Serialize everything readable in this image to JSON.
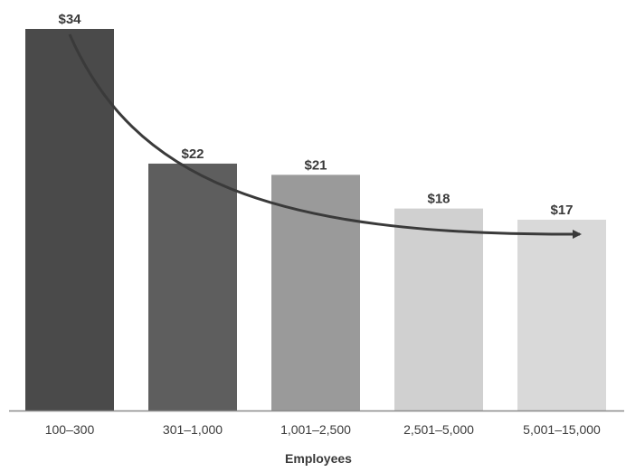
{
  "chart_data": {
    "type": "bar",
    "categories": [
      "100–300",
      "301–1,000",
      "1,001–2,500",
      "2,501–5,000",
      "5,001–15,000"
    ],
    "values": [
      34,
      22,
      21,
      18,
      17
    ],
    "value_labels": [
      "$34",
      "$22",
      "$21",
      "$18",
      "$17"
    ],
    "title": "",
    "xlabel": "Employees",
    "ylabel": "",
    "ylim": [
      0,
      34
    ],
    "grid": false,
    "legend": "none",
    "trend_arrow": true,
    "colors": {
      "bars": [
        "#4a4a4a",
        "#5e5e5e",
        "#9a9a9a",
        "#d0d0d0",
        "#d9d9d9"
      ],
      "arrow": "#3a3a3a",
      "axis": "#8a8a8a",
      "text": "#3a3a3a"
    }
  }
}
